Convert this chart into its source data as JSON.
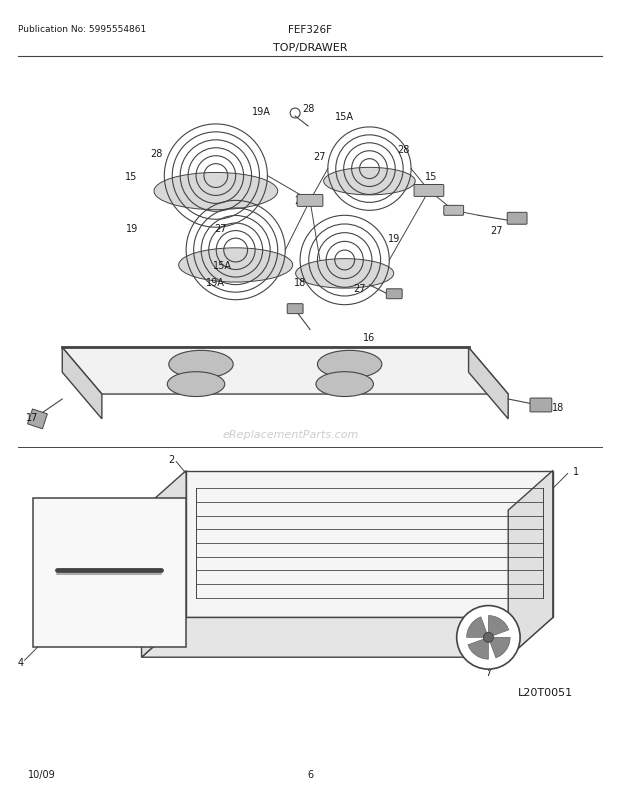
{
  "publication": "Publication No: 5995554861",
  "model": "FEF326F",
  "section": "TOP/DRAWER",
  "diagram_id": "L20T0051",
  "date": "10/09",
  "page": "6",
  "watermark": "eReplacementParts.com",
  "bg_color": "#ffffff",
  "text_color": "#1a1a1a",
  "line_color": "#444444"
}
